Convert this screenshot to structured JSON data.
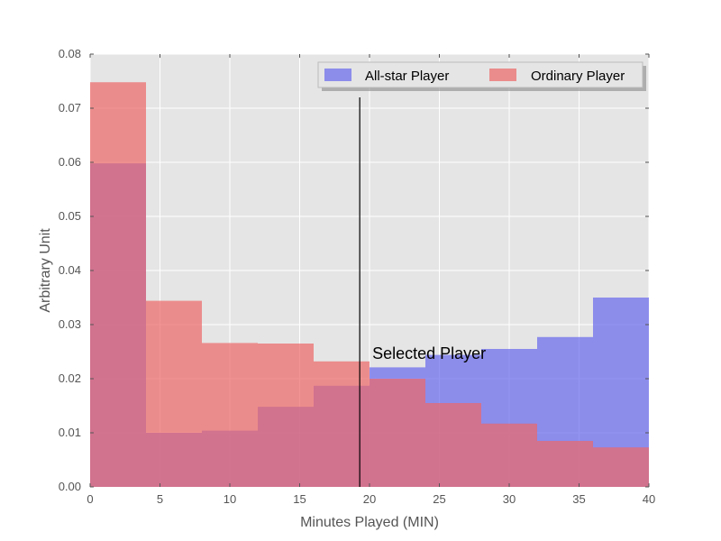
{
  "chart_data": {
    "type": "bar",
    "title": "",
    "xlabel": "Minutes Played (MIN)",
    "ylabel": "Arbitrary Unit",
    "xlim": [
      0,
      40
    ],
    "ylim": [
      0,
      0.08
    ],
    "x_ticks": [
      "0",
      "5",
      "10",
      "15",
      "20",
      "25",
      "30",
      "35",
      "40"
    ],
    "y_ticks": [
      "0.00",
      "0.01",
      "0.02",
      "0.03",
      "0.04",
      "0.05",
      "0.06",
      "0.07",
      "0.08"
    ],
    "grid": true,
    "legend_position": "top-right",
    "bin_edges": [
      0,
      4,
      8,
      12,
      16,
      20,
      24,
      28,
      32,
      36,
      40
    ],
    "series": [
      {
        "name": "All-star Player",
        "color": "#6666ee",
        "values": [
          0.0598,
          0.01,
          0.0104,
          0.0148,
          0.0187,
          0.0221,
          0.0244,
          0.0255,
          0.0277,
          0.035
        ]
      },
      {
        "name": "Ordinary Player",
        "color": "#ee6666",
        "values": [
          0.0748,
          0.0344,
          0.0266,
          0.0265,
          0.0232,
          0.02,
          0.0155,
          0.0117,
          0.0085,
          0.0073
        ]
      }
    ],
    "annotations": [
      {
        "text": "Selected Player",
        "x": 20.2,
        "y": 0.0237
      }
    ],
    "vertical_line": {
      "x": 19.3,
      "ymax": 0.072
    }
  }
}
